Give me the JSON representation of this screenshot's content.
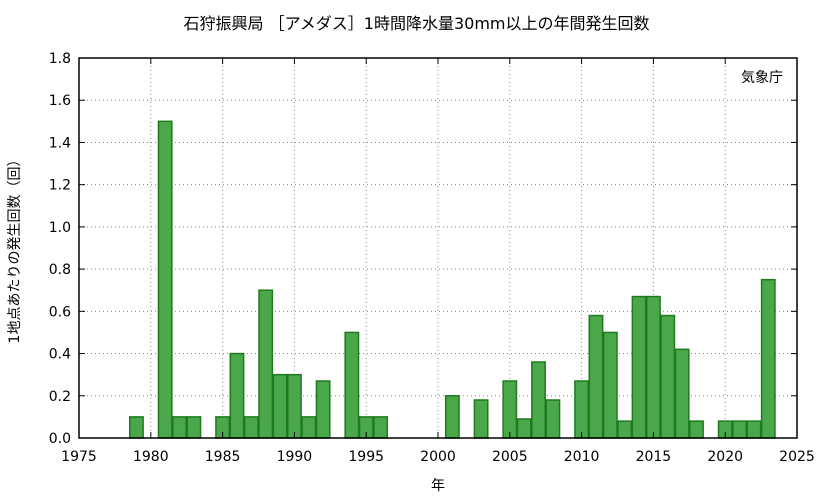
{
  "chart_data": {
    "type": "bar",
    "title": "石狩振興局 ［アメダス］1時間降水量30mm以上の年間発生回数",
    "xlabel": "年",
    "ylabel": "1地点あたりの発生回数（回）",
    "annotation": "気象庁",
    "xlim": [
      1975,
      2025
    ],
    "ylim": [
      0,
      1.8
    ],
    "x_ticks": [
      "1975",
      "1980",
      "1985",
      "1990",
      "1995",
      "2000",
      "2005",
      "2010",
      "2015",
      "2020",
      "2025"
    ],
    "y_ticks": [
      "0.0",
      "0.2",
      "0.4",
      "0.6",
      "0.8",
      "1.0",
      "1.2",
      "1.4",
      "1.6",
      "1.8"
    ],
    "grid": true,
    "bar_color": "#4aa84a",
    "bar_edge_color": "#1f7a1f",
    "x": [
      1979,
      1981,
      1982,
      1983,
      1985,
      1986,
      1987,
      1988,
      1989,
      1990,
      1991,
      1992,
      1994,
      1995,
      1996,
      2001,
      2003,
      2005,
      2006,
      2007,
      2008,
      2010,
      2011,
      2012,
      2013,
      2014,
      2015,
      2016,
      2017,
      2018,
      2020,
      2021,
      2022,
      2023
    ],
    "values": [
      0.1,
      1.5,
      0.1,
      0.1,
      0.1,
      0.4,
      0.1,
      0.7,
      0.3,
      0.3,
      0.1,
      0.27,
      0.5,
      0.1,
      0.1,
      0.2,
      0.18,
      0.27,
      0.09,
      0.36,
      0.18,
      0.27,
      0.58,
      0.5,
      0.08,
      0.67,
      0.67,
      0.58,
      0.42,
      0.08,
      0.08,
      0.08,
      0.08,
      0.75
    ]
  }
}
